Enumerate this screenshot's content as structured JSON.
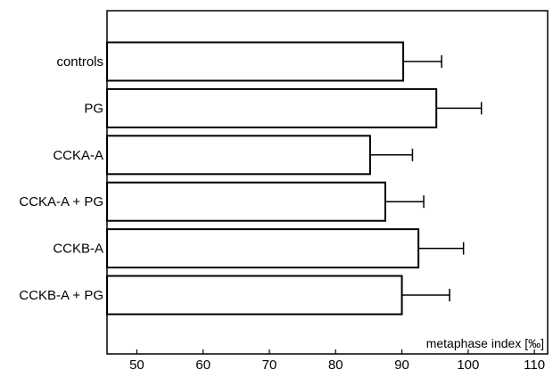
{
  "chart_data": {
    "type": "bar",
    "orientation": "horizontal",
    "categories": [
      "controls",
      "PG",
      "CCKA-A",
      "CCKA-A + PG",
      "CCKB-A",
      "CCKB-A + PG"
    ],
    "values": [
      90.2,
      95.2,
      85.2,
      87.5,
      92.5,
      90.0
    ],
    "error": [
      5.8,
      6.8,
      6.4,
      5.8,
      6.8,
      7.2
    ],
    "xlabel": "metaphase index [‰]",
    "xlim": [
      45.5,
      112
    ],
    "xticks": [
      50,
      60,
      70,
      80,
      90,
      100,
      110
    ],
    "grid": false,
    "legend": "none",
    "colors": {
      "bar_fill": "#ffffff",
      "bar_stroke": "#000000",
      "axis": "#000000"
    }
  }
}
